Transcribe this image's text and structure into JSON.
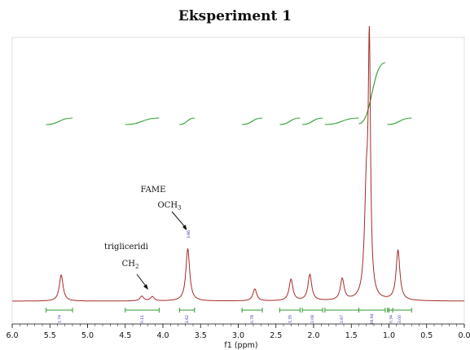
{
  "chart_data": {
    "type": "line",
    "title": "Eksperiment 1",
    "xlabel": "f1 (ppm)",
    "xlim": [
      6.0,
      0.0
    ],
    "x_ticks": [
      "6.0",
      "5.5",
      "5.0",
      "4.5",
      "4.0",
      "3.5",
      "3.0",
      "2.5",
      "2.0",
      "1.5",
      "1.0",
      "0.5",
      "0.0"
    ],
    "peak_label": "3.66",
    "annotations": [
      {
        "lines": [
          "FAME",
          "OCH3"
        ],
        "points_to_ppm": 3.67
      },
      {
        "lines": [
          "trigliceridi",
          "CH2"
        ],
        "points_to_ppm": 4.18
      }
    ],
    "peaks": [
      {
        "ppm": 5.35,
        "height": 0.11
      },
      {
        "ppm": 4.28,
        "height": 0.02
      },
      {
        "ppm": 4.14,
        "height": 0.018
      },
      {
        "ppm": 3.67,
        "height": 0.22
      },
      {
        "ppm": 2.78,
        "height": 0.05
      },
      {
        "ppm": 2.3,
        "height": 0.09
      },
      {
        "ppm": 2.05,
        "height": 0.11
      },
      {
        "ppm": 1.62,
        "height": 0.09
      },
      {
        "ppm": 1.3,
        "height": 0.42
      },
      {
        "ppm": 1.26,
        "height": 1.0
      },
      {
        "ppm": 0.88,
        "height": 0.21
      }
    ],
    "integrals": [
      {
        "from": 5.55,
        "to": 5.2,
        "value": "1.74"
      },
      {
        "from": 4.5,
        "to": 4.05,
        "value": "0.11"
      },
      {
        "from": 3.78,
        "to": 3.58,
        "value": "1.62"
      },
      {
        "from": 2.95,
        "to": 2.68,
        "value": "0.78"
      },
      {
        "from": 2.45,
        "to": 2.18,
        "value": "1.35"
      },
      {
        "from": 2.15,
        "to": 1.88,
        "value": "2.08"
      },
      {
        "from": 1.85,
        "to": 1.4,
        "value": "2.67"
      },
      {
        "from": 1.4,
        "to": 1.05,
        "value": "16.94"
      },
      {
        "from": 1.02,
        "to": 0.7,
        "value": "3.00"
      },
      {
        "from": 1.0,
        "to": 0.95,
        "value": "0.34"
      }
    ],
    "colors": {
      "spectrum": "#a52a2a",
      "integral": "#2e9b2e",
      "integral_value": "#2b2bb5"
    }
  }
}
